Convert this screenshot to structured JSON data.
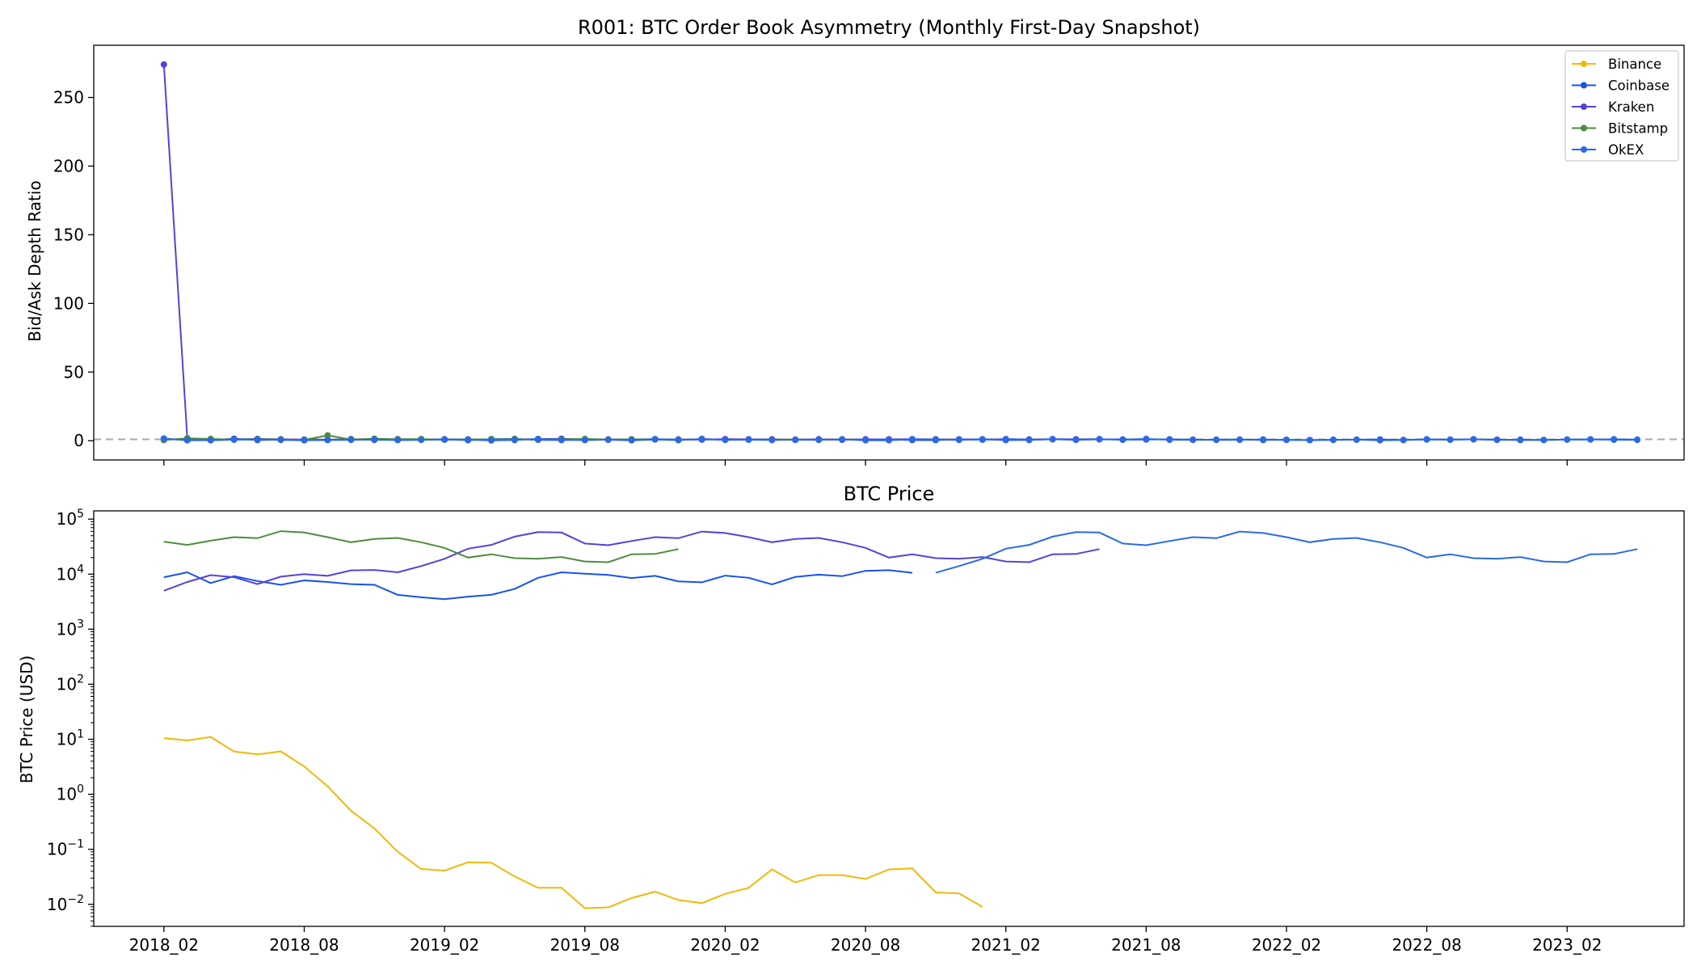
{
  "chart_data": [
    {
      "type": "line",
      "title": "R001: BTC Order Book Asymmetry (Monthly First-Day Snapshot)",
      "xlabel": "",
      "ylabel": "Bid/Ask Depth Ratio",
      "ylim": [
        -14,
        288
      ],
      "yticks": [
        0,
        50,
        100,
        150,
        200,
        250
      ],
      "x_ticks": [
        "2018_02",
        "2018_08",
        "2019_02",
        "2019_08",
        "2020_02",
        "2020_08",
        "2021_02",
        "2021_08",
        "2022_02",
        "2022_08",
        "2023_02"
      ],
      "xlim": [
        -3,
        65
      ],
      "reference_line": {
        "y": 1,
        "style": "dashed",
        "color": "#aaaaaa"
      },
      "legend_position": "top-right",
      "markers": true,
      "grid": false,
      "series": [
        {
          "name": "Binance",
          "color": "#f0b90b",
          "values": [
            0.9,
            1.3,
            0.8,
            1.1,
            0.8,
            0.9,
            0.7,
            0.8,
            1.2,
            0.9,
            1.0,
            1.1,
            0.9,
            0.8,
            1.0,
            1.2,
            0.8,
            0.9,
            1.1,
            1.0,
            0.8,
            0.9,
            1.1,
            0.9,
            1.0,
            0.8,
            1.2,
            0.9,
            1.0,
            1.1,
            0.8,
            0.9,
            1.0,
            1.1,
            0.9,
            0.8
          ]
        },
        {
          "name": "Coinbase",
          "color": "#1652f0",
          "values": [
            1.6,
            0.3,
            0.4,
            1.5,
            0.5,
            0.8,
            0.4,
            0.6,
            1.2,
            0.6,
            0.7,
            1.0,
            0.9,
            0.4,
            1.2,
            1.3,
            0.6,
            0.5,
            1.0,
            0.7,
            0.3,
            0.9,
            0.4,
            1.3,
            0.7,
            1.0,
            0.9,
            0.6,
            0.8,
            0.7,
            1.0,
            0.9,
            0.5,
            0.4,
            1.0,
            0.8,
            1.2,
            0.9,
            1.1,
            1.0,
            1.2,
            0.7,
            0.9,
            1.0,
            0.8,
            0.6,
            0.7,
            0.9,
            0.6,
            0.5,
            0.7,
            0.8,
            0.9,
            0.6,
            1.0,
            0.8,
            1.1,
            0.7,
            0.5,
            0.6,
            0.8,
            0.9,
            1.0,
            0.8
          ]
        },
        {
          "name": "Kraken",
          "color": "#5741d9",
          "values": [
            274.0,
            1.6,
            0.8,
            1.0,
            1.3,
            1.1,
            0.9,
            0.8,
            1.0,
            0.8,
            1.2,
            0.9,
            1.1,
            0.9,
            0.7,
            1.0,
            1.2,
            1.5,
            0.9,
            0.8,
            1.0,
            1.1,
            0.9,
            0.8,
            1.2,
            1.0,
            0.9,
            0.8,
            1.1,
            0.8,
            0.9,
            1.0,
            1.2,
            1.0,
            0.9,
            1.1,
            0.8,
            0.9,
            1.2,
            1.0,
            1.1,
            0.9,
            1.0
          ]
        },
        {
          "name": "Bitstamp",
          "color": "#4e8c3e",
          "values": [
            0.5,
            1.8,
            1.3,
            0.8,
            1.2,
            0.9,
            0.6,
            3.9,
            0.9,
            1.5,
            1.1,
            1.2,
            0.8,
            1.0,
            0.9,
            1.2,
            0.8,
            1.0,
            1.3,
            0.9,
            1.0,
            1.1,
            0.8
          ]
        },
        {
          "name": "OkEX",
          "color": "#2a6ae5",
          "values": [
            1.5,
            0.4,
            0.3,
            0.8,
            0.9,
            0.6,
            0.3,
            0.5,
            0.6,
            0.9,
            0.4,
            0.6,
            0.9,
            0.7,
            0.2,
            0.5,
            1.3,
            0.6,
            0.4,
            0.8,
            0.5,
            1.2,
            0.8,
            1.0,
            0.6,
            0.7,
            0.5,
            0.8,
            0.6,
            1.0,
            0.3,
            0.3,
            1.1,
            0.8,
            0.6,
            1.0,
            0.4,
            0.5,
            1.1,
            0.6,
            1.0,
            0.9,
            1.3,
            0.7,
            0.6,
            0.8,
            0.9,
            0.5,
            0.7,
            0.4,
            0.6,
            0.8,
            0.3,
            0.5,
            0.9,
            0.7,
            1.0,
            0.6,
            0.8,
            0.5,
            0.9,
            1.0,
            0.7,
            0.6
          ]
        }
      ]
    },
    {
      "type": "line",
      "title": "BTC Price",
      "xlabel": "",
      "ylabel": "BTC Price (USD)",
      "y_scale": "log",
      "ylim_log10": [
        -2.4,
        5.15
      ],
      "ytick_exponents": [
        -2,
        -1,
        0,
        1,
        2,
        3,
        4,
        5
      ],
      "ytick_base": "10",
      "x_ticks": [
        "2018_02",
        "2018_08",
        "2019_02",
        "2019_08",
        "2020_02",
        "2020_08",
        "2021_02",
        "2021_08",
        "2022_02",
        "2022_08",
        "2023_02"
      ],
      "xlim": [
        -3,
        65
      ],
      "grid": false,
      "series": [
        {
          "name": "Binance",
          "color": "#f0b90b",
          "values": [
            10.5,
            9.5,
            11,
            6,
            5.3,
            6,
            3.2,
            1.4,
            0.5,
            0.24,
            0.09,
            0.044,
            0.041,
            0.058,
            0.057,
            0.032,
            0.02,
            0.02,
            0.0085,
            0.0088,
            0.013,
            0.017,
            0.012,
            0.0105,
            0.0155,
            0.02,
            0.043,
            0.025,
            0.034,
            0.034,
            0.029,
            0.043,
            0.045,
            0.0165,
            0.0158,
            0.009
          ]
        },
        {
          "name": "Coinbase",
          "color": "#1652f0",
          "values": [
            8800,
            10800,
            6900,
            9200,
            7500,
            6400,
            7700,
            7200,
            6600,
            6400,
            4200,
            3800,
            3500,
            3900,
            4200,
            5400,
            8600,
            10800,
            10200,
            9700,
            8500,
            9300,
            7400,
            7100,
            9400,
            8600,
            6500,
            8900,
            9800,
            9200,
            11500,
            11800,
            10600
          ]
        },
        {
          "name": "Kraken",
          "color": "#5741d9",
          "values": [
            5000,
            7200,
            9600,
            8800,
            6600,
            9000,
            10000,
            9300,
            11700,
            11900,
            10800,
            14000,
            19000,
            29000,
            34000,
            48000,
            58000,
            57000,
            36000,
            33500,
            40000,
            47000,
            45000,
            59500,
            56000,
            47000,
            38000,
            43500,
            45500,
            38000,
            30000,
            20000,
            23000,
            19500,
            19000,
            20500,
            17000,
            16500,
            23000,
            23300,
            28500
          ]
        },
        {
          "name": "Bitstamp",
          "color": "#4e8c3e",
          "values": [
            39000,
            34000,
            40500,
            47000,
            45000,
            60500,
            57000,
            47000,
            38000,
            43500,
            45500,
            38000,
            30000,
            20000,
            23000,
            19500,
            19000,
            20500,
            17000,
            16500,
            23000,
            23300,
            28500
          ]
        },
        {
          "name": "OkEX",
          "color": "#2a6ae5",
          "start_index": 33,
          "values": [
            10600,
            14000,
            19000,
            29000,
            34000,
            48000,
            58000,
            57000,
            36000,
            33500,
            40000,
            47000,
            45000,
            59500,
            56000,
            47000,
            38000,
            43500,
            45500,
            38000,
            30000,
            20000,
            23000,
            19500,
            19000,
            20500,
            17000,
            16500,
            23000,
            23300,
            28500
          ]
        }
      ]
    }
  ]
}
